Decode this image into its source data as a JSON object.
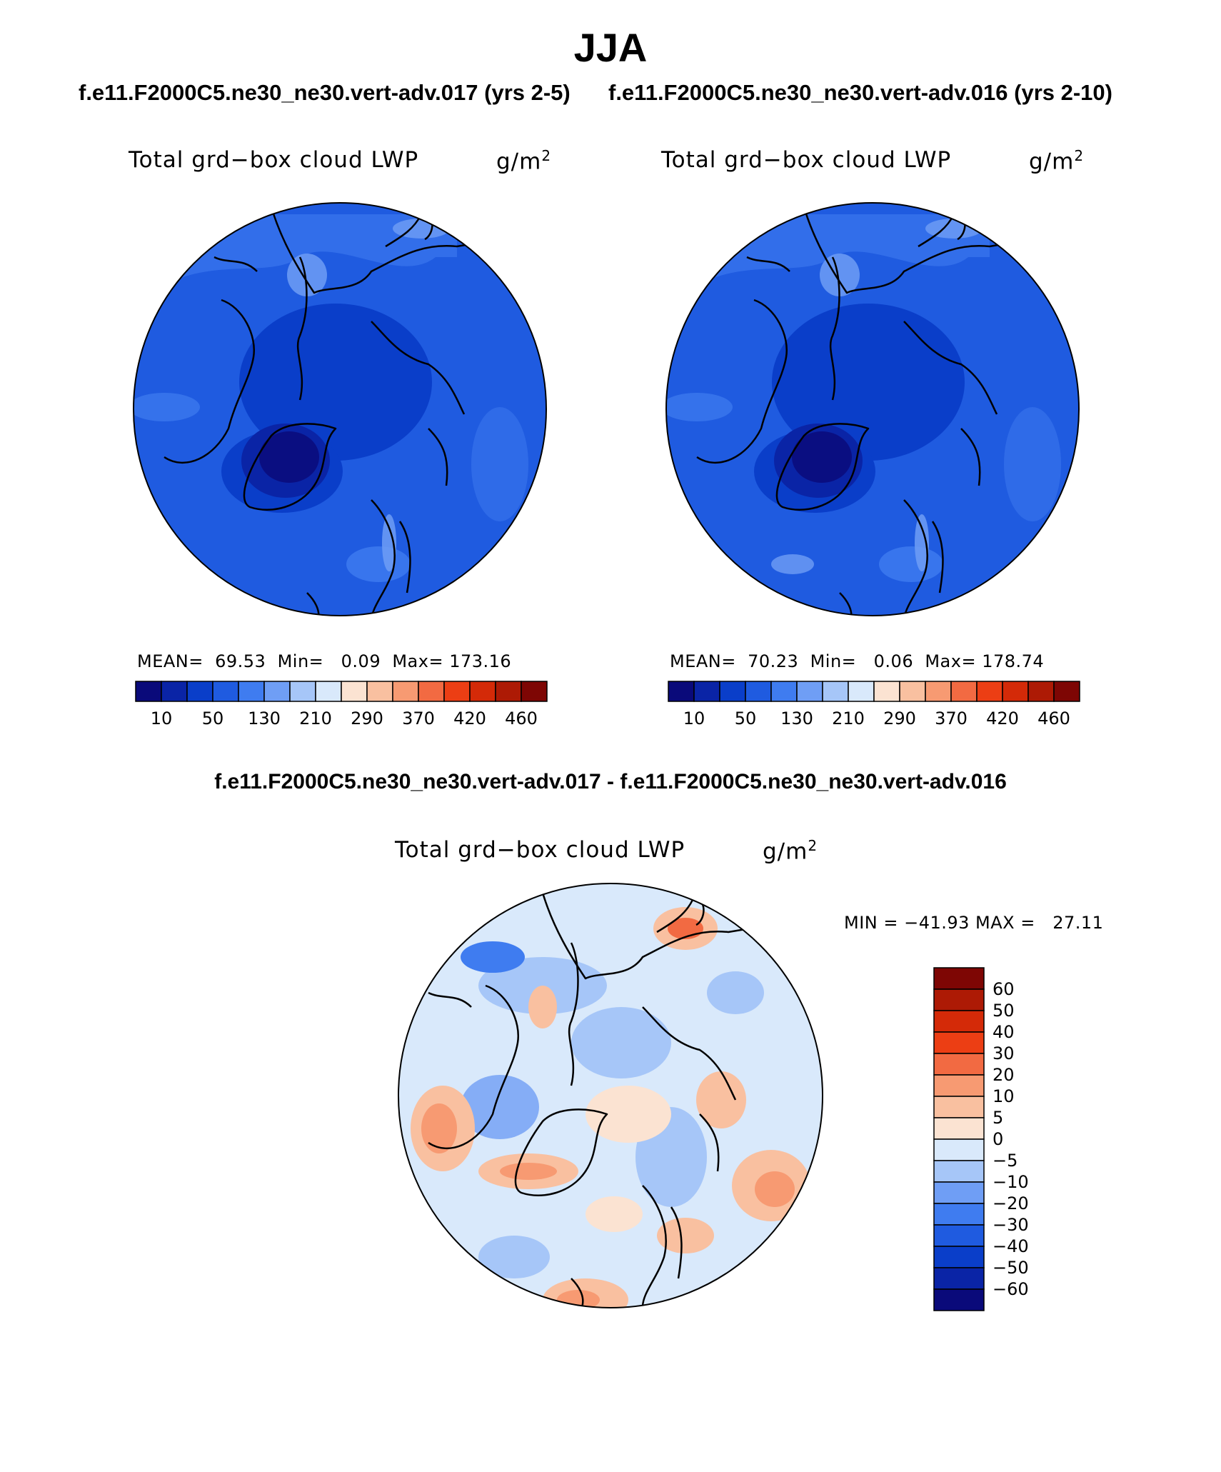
{
  "figure": {
    "season": "JJA",
    "run_a_title": "f.e11.F2000C5.ne30_ne30.vert-adv.017 (yrs 2-5)",
    "run_b_title": "f.e11.F2000C5.ne30_ne30.vert-adv.016 (yrs 2-10)",
    "diff_title": "f.e11.F2000C5.ne30_ne30.vert-adv.017 - f.e11.F2000C5.ne30_ne30.vert-adv.016"
  },
  "panels": {
    "a": {
      "title": "Total grd−box cloud LWP",
      "units": "g/m",
      "units_exp": "2",
      "stats": "MEAN=  69.53  Min=   0.09  Max= 173.16",
      "mean": 69.53,
      "min": 0.09,
      "max": 173.16
    },
    "b": {
      "title": "Total grd−box cloud LWP",
      "units": "g/m",
      "units_exp": "2",
      "stats": "MEAN=  70.23  Min=   0.06  Max= 178.74",
      "mean": 70.23,
      "min": 0.06,
      "max": 178.74
    },
    "diff": {
      "title": "Total grd−box cloud LWP",
      "units": "g/m",
      "units_exp": "2",
      "stats": "MIN = −41.93 MAX =   27.11",
      "min": -41.93,
      "max": 27.11
    }
  },
  "colorbar_field": {
    "colors": [
      "#0a0a7a",
      "#0a24a6",
      "#0a3ec9",
      "#1f5be0",
      "#3f7cf0",
      "#6f9ef5",
      "#a6c6f8",
      "#d9e9fb",
      "#fbe3d2",
      "#f9c0a0",
      "#f79a72",
      "#f26a42",
      "#ec3e14",
      "#d42a08",
      "#ad1a05",
      "#7e0604"
    ],
    "labels": [
      "10",
      "50",
      "130",
      "210",
      "290",
      "370",
      "420",
      "460"
    ]
  },
  "colorbar_diff": {
    "colors": [
      "#7e0604",
      "#ad1a05",
      "#d42a08",
      "#ec3e14",
      "#f26a42",
      "#f79a72",
      "#f9c0a0",
      "#fbe3d2",
      "#d9e9fb",
      "#a6c6f8",
      "#6f9ef5",
      "#3f7cf0",
      "#1f5be0",
      "#0a3ec9",
      "#0a24a6",
      "#0a0a7a"
    ],
    "labels": [
      "60",
      "50",
      "40",
      "30",
      "20",
      "10",
      "5",
      "0",
      "−5",
      "−10",
      "−20",
      "−30",
      "−40",
      "−50",
      "−60"
    ]
  }
}
